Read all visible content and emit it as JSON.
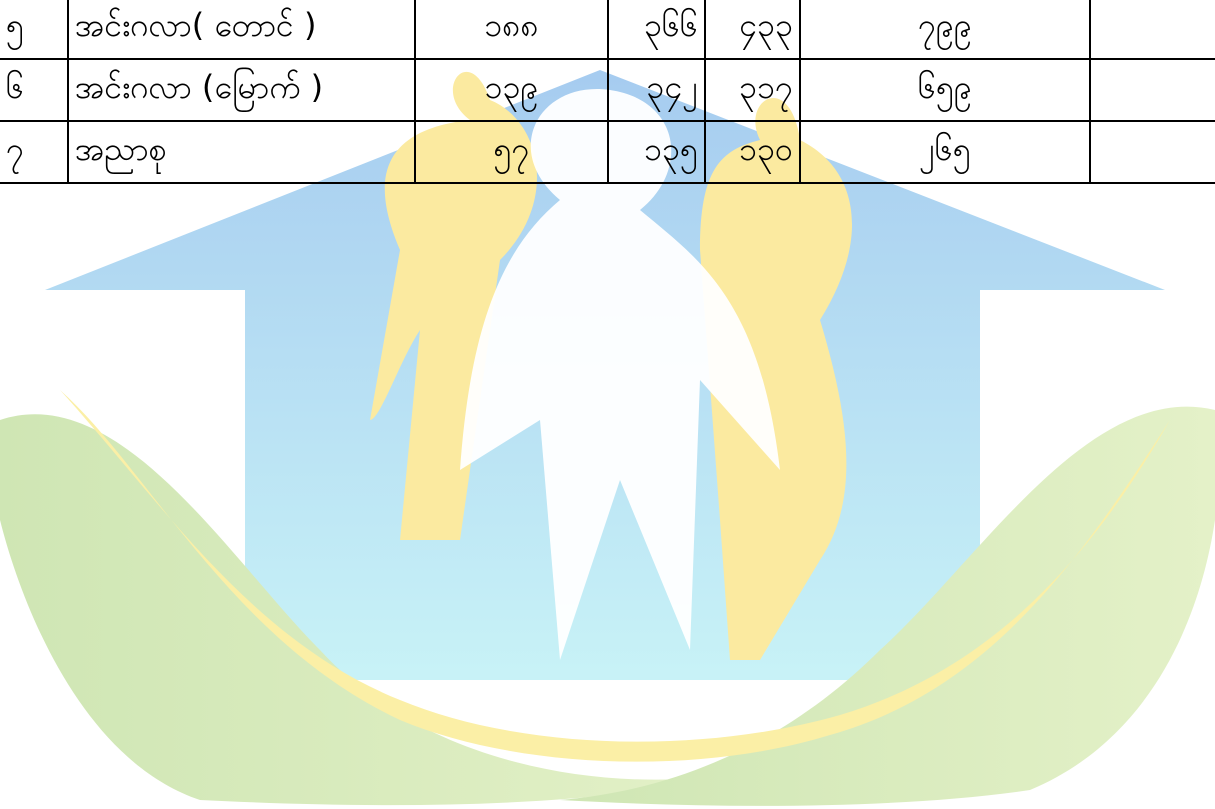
{
  "table": {
    "rows": [
      [
        "၅",
        "အင်းဂလာ( တောင် )",
        "၁၈၈",
        "၃၆၆",
        "၄၃၃",
        "၇၉၉"
      ],
      [
        "၆",
        "အင်းဂလာ (မြောက် )",
        "၁၃၉",
        "၃၄၂",
        "၃၁၇",
        "၆၅၉"
      ],
      [
        "၇",
        "အညာစု",
        "၅၇",
        "၁၃၅",
        "၁၃၀",
        "၂၆၅"
      ]
    ]
  }
}
